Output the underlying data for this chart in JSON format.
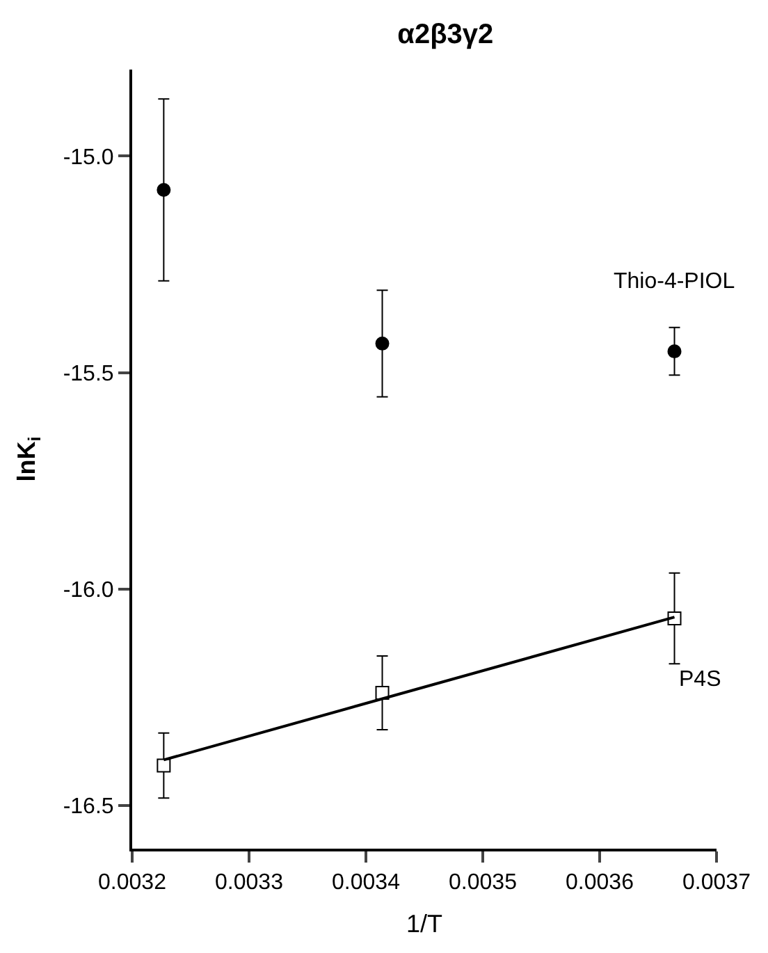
{
  "chart_data": {
    "type": "scatter",
    "title": "α2β3γ2",
    "xlabel": "1/T",
    "ylabel": "lnK$_{i}$",
    "x": [
      0.003227,
      0.003414,
      0.003664
    ],
    "series": [
      {
        "name": "Thio-4-PIOL",
        "color": "#000000",
        "marker": "circle",
        "values": [
          -15.078,
          -15.433,
          -15.451
        ],
        "errors": [
          0.21,
          0.123,
          0.055
        ]
      },
      {
        "name": "P4S",
        "color": "#ffffff",
        "marker": "square",
        "values": [
          -16.408,
          -16.24,
          -16.068
        ],
        "errors": [
          0.075,
          0.085,
          0.105
        ]
      },
      {
        "type": "line",
        "color": "#000000",
        "marker": "none",
        "x": [
          0.003227,
          0.003664
        ],
        "values": [
          -16.395,
          -16.065
        ]
      }
    ],
    "xlim": [
      0.0032,
      0.0037
    ],
    "xticks": [
      {
        "value": 0.0032,
        "label": "0.0032"
      },
      {
        "value": 0.0033,
        "label": "0.0033"
      },
      {
        "value": 0.0034,
        "label": "0.0034"
      },
      {
        "value": 0.0035,
        "label": "0.0035"
      },
      {
        "value": 0.0036,
        "label": "0.0036"
      },
      {
        "value": 0.0037,
        "label": "0.0037"
      }
    ],
    "ylim": [
      -16.6,
      -14.8
    ],
    "yticks": [
      {
        "value": -16.5,
        "label": "-16.5"
      },
      {
        "value": -16.0,
        "label": "-16.0"
      },
      {
        "value": -15.5,
        "label": "-15.5"
      },
      {
        "value": -15.0,
        "label": "-15.0"
      }
    ],
    "grid": false,
    "legend": false
  }
}
